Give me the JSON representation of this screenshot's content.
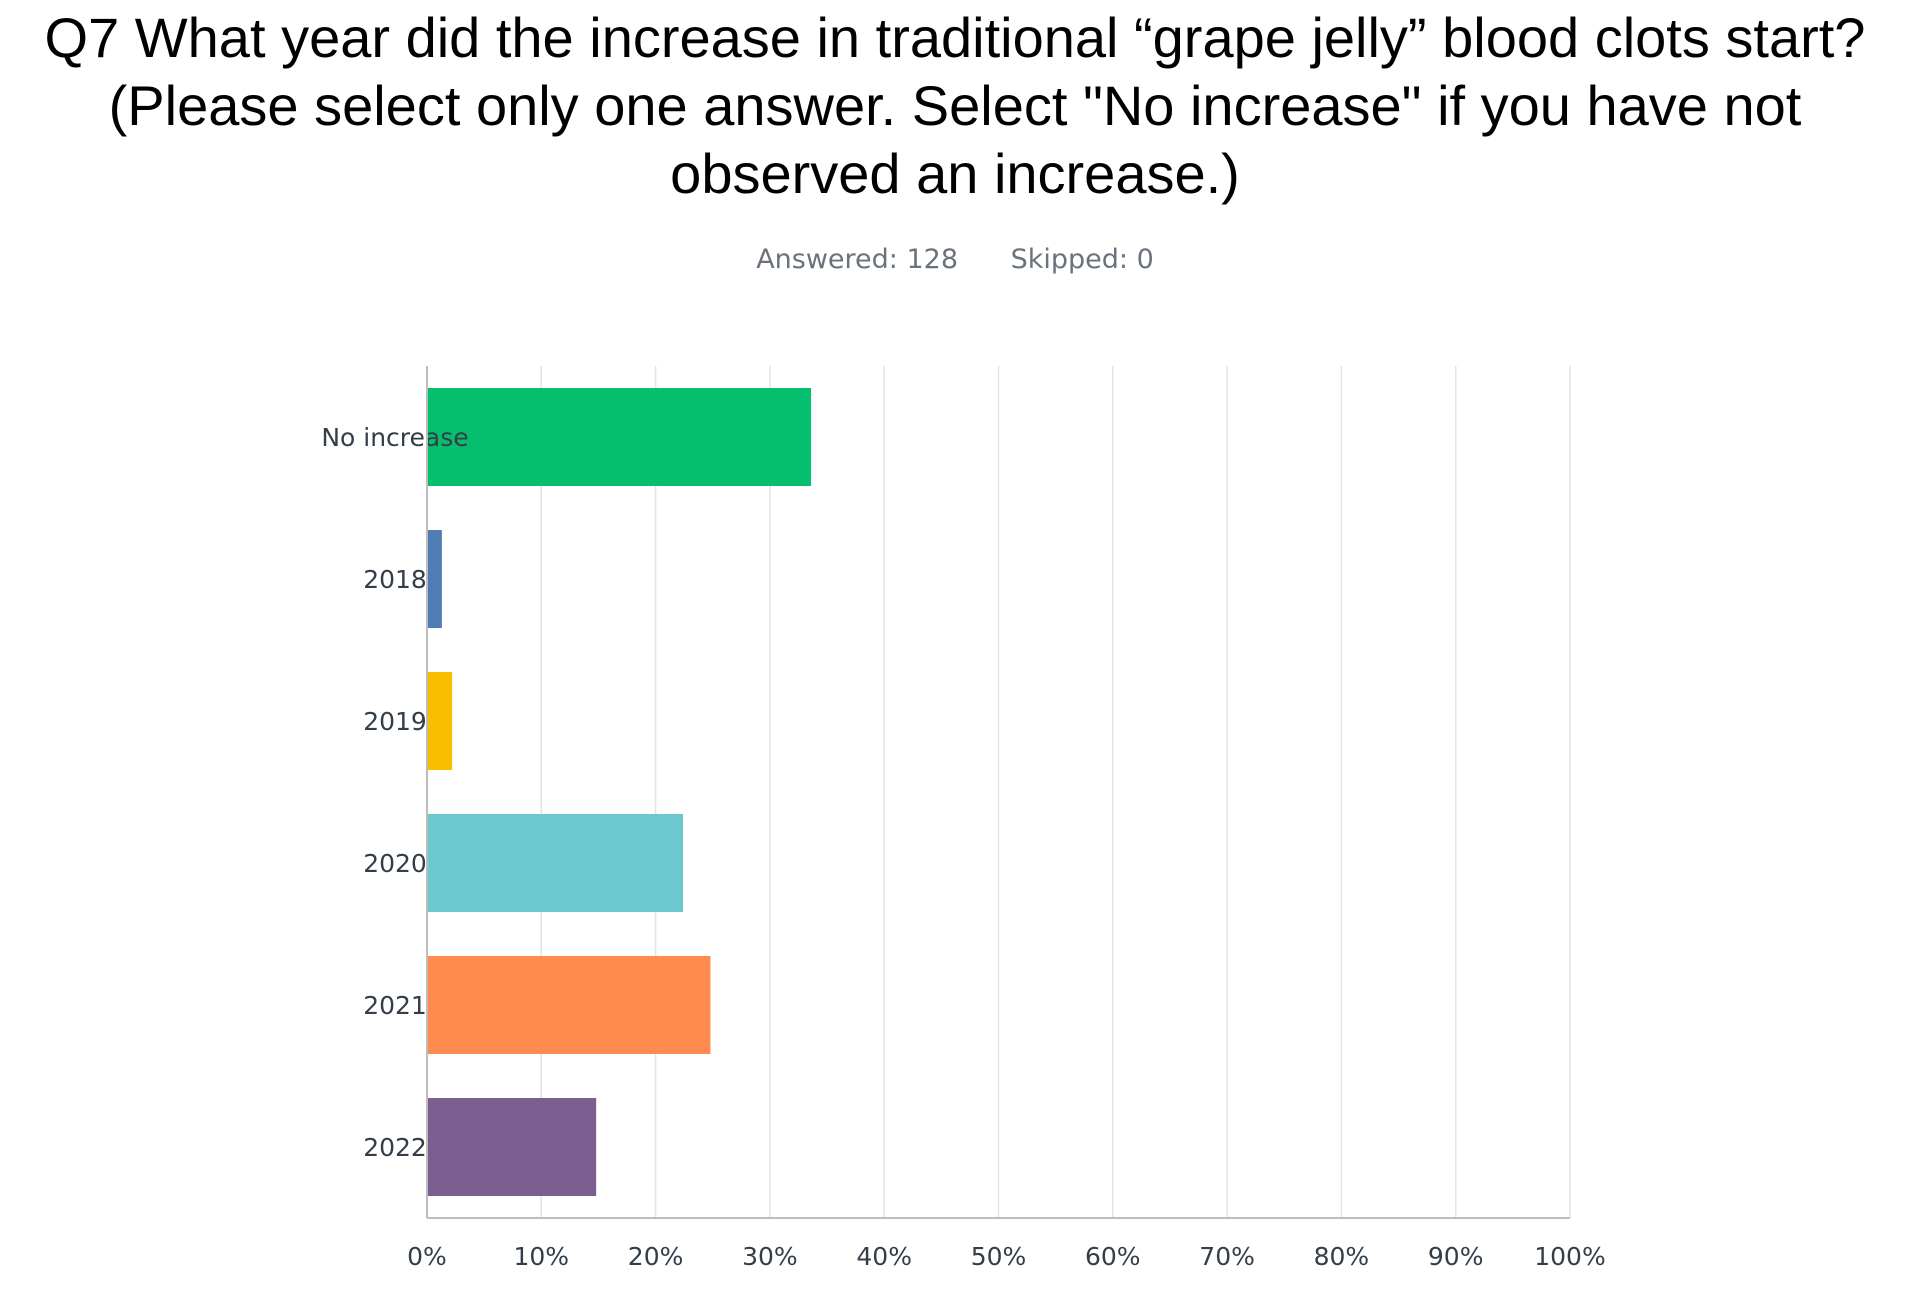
{
  "header": {
    "title_lines": [
      "Q7 What year did the increase in traditional “grape jelly” blood clots start?",
      "(Please select only one answer.  Select \"No increase\" if you have not",
      "observed an increase.)"
    ],
    "answered": "Answered: 128",
    "skipped": "Skipped: 0"
  },
  "chart_data": {
    "type": "bar",
    "orientation": "horizontal",
    "title": "Q7 What year did the increase in traditional “grape jelly” blood clots start? (Please select only one answer.  Select \"No increase\" if you have not observed an increase.)",
    "categories": [
      "No increase",
      "2018",
      "2019",
      "2020",
      "2021",
      "2022"
    ],
    "values": [
      33.6,
      1.3,
      2.2,
      22.4,
      24.8,
      14.8
    ],
    "colors": [
      "#05bf6f",
      "#507cb6",
      "#f9be00",
      "#6bc8cd",
      "#ff8b4f",
      "#7d5e90"
    ],
    "xlim": [
      0,
      100
    ],
    "x_ticks": [
      0,
      10,
      20,
      30,
      40,
      50,
      60,
      70,
      80,
      90,
      100
    ],
    "x_tick_labels": [
      "0%",
      "10%",
      "20%",
      "30%",
      "40%",
      "50%",
      "60%",
      "70%",
      "80%",
      "90%",
      "100%"
    ],
    "xlabel": "",
    "ylabel": "",
    "grid": true
  }
}
